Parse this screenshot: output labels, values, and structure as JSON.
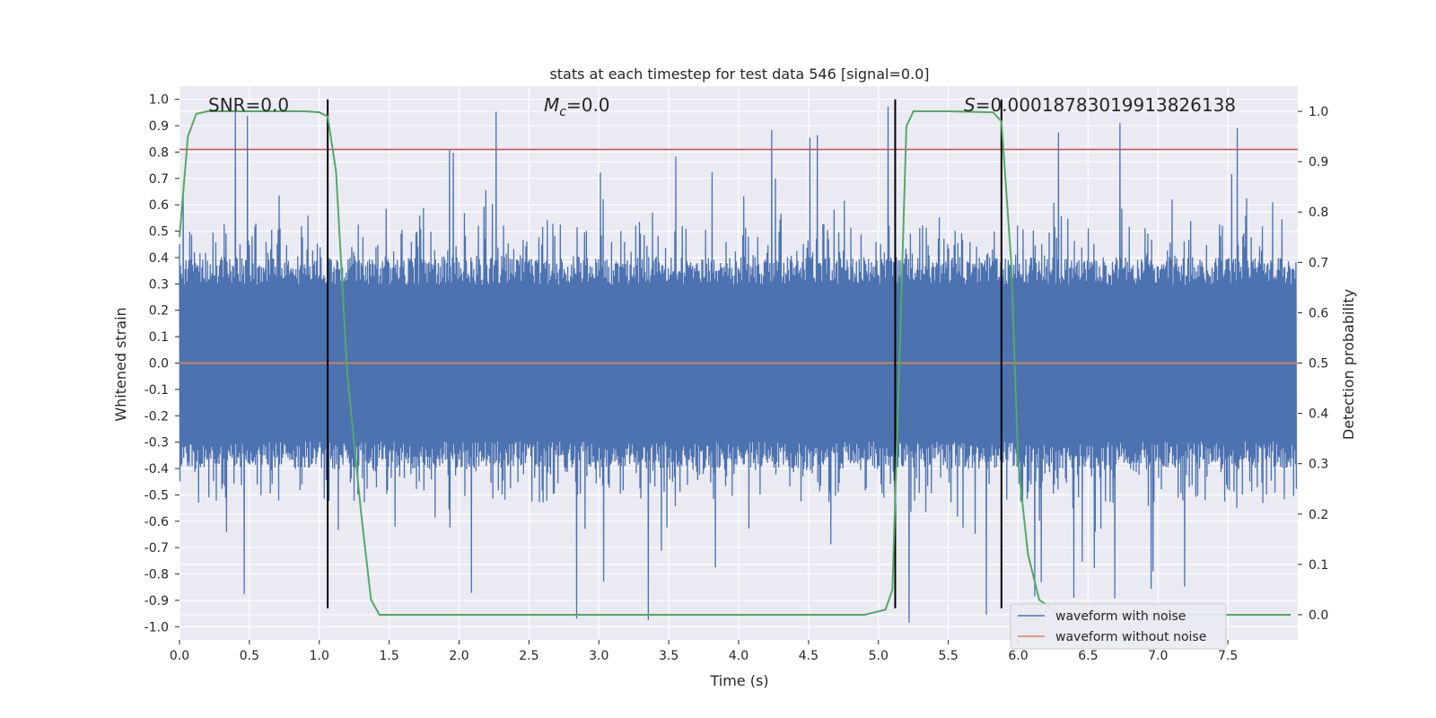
{
  "chart_data": {
    "type": "line",
    "title": "stats at each timestep for test data 546 [signal=0.0]",
    "xlabel": "Time (s)",
    "ylabel_left": "Whitened strain",
    "ylabel_right": "Detection probability",
    "xlim": [
      0.0,
      8.0
    ],
    "ylim_left": [
      -1.05,
      1.05
    ],
    "ylim_right": [
      -0.05,
      1.05
    ],
    "x_ticks": [
      "0.0",
      "0.5",
      "1.0",
      "1.5",
      "2.0",
      "2.5",
      "3.0",
      "3.5",
      "4.0",
      "4.5",
      "5.0",
      "5.5",
      "6.0",
      "6.5",
      "7.0",
      "7.5"
    ],
    "y_ticks_left": [
      "1.0",
      "0.9",
      "0.8",
      "0.7",
      "0.6",
      "0.5",
      "0.4",
      "0.3",
      "0.2",
      "0.1",
      "0.0",
      "-0.1",
      "-0.2",
      "-0.3",
      "-0.4",
      "-0.5",
      "-0.6",
      "-0.7",
      "-0.8",
      "-0.9",
      "-1.0"
    ],
    "y_ticks_right": [
      "1.0",
      "0.9",
      "0.8",
      "0.7",
      "0.6",
      "0.5",
      "0.4",
      "0.3",
      "0.2",
      "0.1",
      "0.0"
    ],
    "annotations": {
      "snr": "SNR=0.0",
      "mc_symbol": "M",
      "mc_sub": "c",
      "mc_value": "=0.0",
      "s_symbol": "S",
      "s_value": "=0.00018783019913826138"
    },
    "threshold_left": 0.81,
    "vertical_lines_s": [
      1.06,
      5.12,
      5.88
    ],
    "series": [
      {
        "name": "waveform with noise",
        "color": "#4c72b0",
        "noise_core_amplitude": 0.35,
        "noise_peak_amplitude": 1.0
      },
      {
        "name": "waveform without noise",
        "color": "#dd8452",
        "value": 0.0
      },
      {
        "name": "detection probability",
        "color": "#55a868",
        "axis": "right",
        "x": [
          0.0,
          0.06,
          0.12,
          0.2,
          0.5,
          0.9,
          1.0,
          1.06,
          1.12,
          1.2,
          1.3,
          1.37,
          1.43,
          1.5,
          2.0,
          3.0,
          4.0,
          4.5,
          4.9,
          5.05,
          5.1,
          5.15,
          5.2,
          5.25,
          5.5,
          5.82,
          5.88,
          5.95,
          6.0,
          6.07,
          6.15,
          6.3,
          7.0,
          7.6,
          7.95
        ],
        "y": [
          0.75,
          0.95,
          0.995,
          1.0,
          1.0,
          1.0,
          0.998,
          0.99,
          0.88,
          0.48,
          0.2,
          0.03,
          0.0,
          0.0,
          0.0,
          0.0,
          0.0,
          0.0,
          0.0,
          0.01,
          0.05,
          0.5,
          0.97,
          1.0,
          1.0,
          0.998,
          0.98,
          0.7,
          0.3,
          0.12,
          0.03,
          0.0,
          0.0,
          0.0,
          0.0
        ]
      }
    ],
    "legend": {
      "position": "lower-right",
      "entries": [
        {
          "label": "waveform with noise",
          "color": "#4c72b0"
        },
        {
          "label": "waveform without noise",
          "color": "#dd8452"
        }
      ]
    },
    "style": {
      "plot_bg": "#eaeaf2",
      "grid_color": "#ffffff",
      "threshold_color": "#c44e52",
      "vline_color": "#000000"
    }
  }
}
